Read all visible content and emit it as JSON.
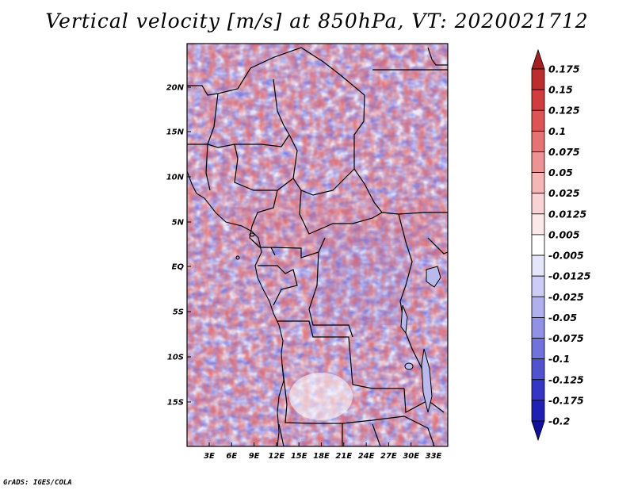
{
  "title": "Vertical velocity [m/s] at 850hPa, VT: 2020021712",
  "credit": "GrADS: IGES/COLA",
  "map": {
    "lat_labels": [
      "20N",
      "15N",
      "10N",
      "5N",
      "EQ",
      "5S",
      "10S",
      "15S"
    ],
    "lon_labels": [
      "3E",
      "6E",
      "9E",
      "12E",
      "15E",
      "18E",
      "21E",
      "24E",
      "27E",
      "30E",
      "33E"
    ]
  },
  "colorbar": {
    "labels": [
      "0.175",
      "0.15",
      "0.125",
      "0.1",
      "0.075",
      "0.05",
      "0.025",
      "0.0125",
      "0.005",
      "-0.005",
      "-0.0125",
      "-0.025",
      "-0.05",
      "-0.075",
      "-0.1",
      "-0.125",
      "-0.175",
      "-0.2"
    ],
    "colors": [
      "#a51e22",
      "#bc2d2d",
      "#cf3d3d",
      "#dd5454",
      "#e77272",
      "#ee9393",
      "#f4b6b6",
      "#f8d3d3",
      "#fbe9e9",
      "#ffffff",
      "#e6e6fb",
      "#ccccf5",
      "#b0b0ee",
      "#9191e6",
      "#7272dc",
      "#5252d1",
      "#3636c4",
      "#2020b3",
      "#101098"
    ]
  }
}
